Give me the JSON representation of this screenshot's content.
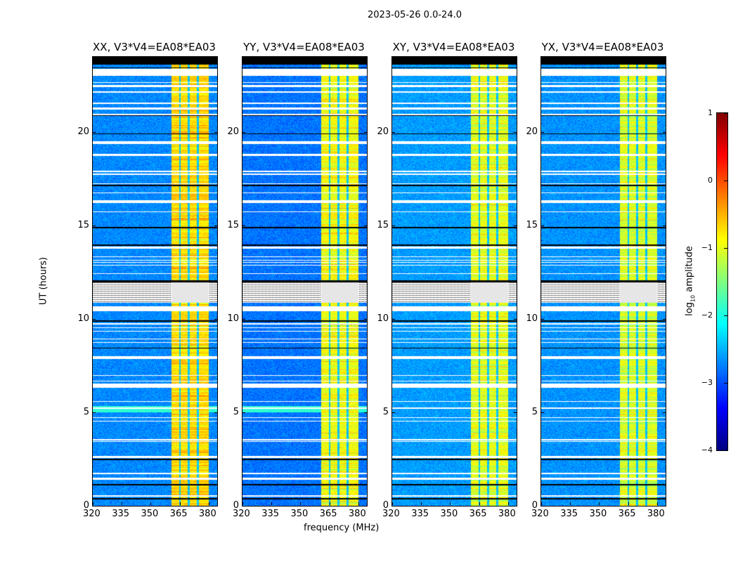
{
  "suptitle": "2023-05-26 0.0-24.0",
  "ylabel": "UT (hours)",
  "xlabel": "frequency (MHz)",
  "colorbar": {
    "label_prefix": "log",
    "label_sub": "10",
    "label_suffix": " amplitude",
    "ticks": [
      "1",
      "0",
      "−1",
      "−2",
      "−3",
      "−4"
    ],
    "tick_values": [
      1,
      0,
      -1,
      -2,
      -3,
      -4
    ],
    "range": [
      -4,
      1
    ],
    "colormap": "jet"
  },
  "chart_data": [
    {
      "type": "heatmap",
      "title": "XX, V3*V4=EA08*EA03",
      "xlabel": "frequency (MHz)",
      "ylabel": "UT (hours)",
      "xlim": [
        320,
        384.4
      ],
      "ylim": [
        0,
        24
      ],
      "xticks": [
        320,
        335,
        350,
        365,
        380
      ],
      "yticks": [
        0,
        5,
        10,
        15,
        20
      ],
      "band_level": -0.7,
      "background_level": -2.7
    },
    {
      "type": "heatmap",
      "title": "YY, V3*V4=EA08*EA03",
      "xlabel": "frequency (MHz)",
      "ylabel": "",
      "xlim": [
        320,
        384.4
      ],
      "ylim": [
        0,
        24
      ],
      "xticks": [
        320,
        335,
        350,
        365,
        380
      ],
      "yticks": [
        0,
        5,
        10,
        15,
        20
      ],
      "band_level": -0.9,
      "background_level": -2.8
    },
    {
      "type": "heatmap",
      "title": "XY, V3*V4=EA08*EA03",
      "xlabel": "",
      "ylabel": "",
      "xlim": [
        320,
        384.4
      ],
      "ylim": [
        0,
        24
      ],
      "xticks": [
        320,
        335,
        350,
        365,
        380
      ],
      "yticks": [
        0,
        5,
        10,
        15,
        20
      ],
      "band_level": -1.0,
      "background_level": -2.6
    },
    {
      "type": "heatmap",
      "title": "YX, V3*V4=EA08*EA03",
      "xlabel": "",
      "ylabel": "",
      "xlim": [
        320,
        384.4
      ],
      "ylim": [
        0,
        24
      ],
      "xticks": [
        320,
        335,
        350,
        365,
        380
      ],
      "yticks": [
        0,
        5,
        10,
        15,
        20
      ],
      "band_level": -1.05,
      "background_level": -2.65
    }
  ],
  "rfi_band_mhz": [
    360.7,
    380
  ],
  "band_gaps_mhz": [
    365.1,
    369.8,
    374.5
  ],
  "flagged_hours_white": [
    [
      0.5,
      0.55
    ],
    [
      1.4,
      1.5
    ],
    [
      1.7,
      1.75
    ],
    [
      2.55,
      2.65
    ],
    [
      3.4,
      3.45
    ],
    [
      3.5,
      3.55
    ],
    [
      4.5,
      4.55
    ],
    [
      4.7,
      4.75
    ],
    [
      5.2,
      5.25
    ],
    [
      5.55,
      5.6
    ],
    [
      6.3,
      6.55
    ],
    [
      6.65,
      6.7
    ],
    [
      6.95,
      7.0
    ],
    [
      7.85,
      8.0
    ],
    [
      8.7,
      8.75
    ],
    [
      8.9,
      8.95
    ],
    [
      9.3,
      9.35
    ],
    [
      9.5,
      9.55
    ],
    [
      9.7,
      9.75
    ],
    [
      10.4,
      10.65
    ],
    [
      10.85,
      12.0
    ],
    [
      12.4,
      12.45
    ],
    [
      12.85,
      12.9
    ],
    [
      13.0,
      13.05
    ],
    [
      13.1,
      13.15
    ],
    [
      13.3,
      13.35
    ],
    [
      13.75,
      13.85
    ],
    [
      15.7,
      15.75
    ],
    [
      16.2,
      16.35
    ],
    [
      16.7,
      16.75
    ],
    [
      17.2,
      17.25
    ],
    [
      17.7,
      17.75
    ],
    [
      17.85,
      17.9
    ],
    [
      18.7,
      18.8
    ],
    [
      19.35,
      19.5
    ],
    [
      20.9,
      20.95
    ],
    [
      21.2,
      21.3
    ],
    [
      21.5,
      21.55
    ],
    [
      22.1,
      22.15
    ],
    [
      22.4,
      22.5
    ],
    [
      22.6,
      22.65
    ],
    [
      23.0,
      23.35
    ]
  ],
  "flagged_hours_black": [
    [
      0.35,
      0.4
    ],
    [
      1.1,
      1.15
    ],
    [
      2.45,
      2.52
    ],
    [
      8.4,
      8.45
    ],
    [
      9.85,
      9.9
    ],
    [
      11.95,
      12.05
    ],
    [
      13.9,
      13.96
    ],
    [
      14.85,
      14.9
    ],
    [
      17.1,
      17.15
    ],
    [
      19.85,
      19.92
    ],
    [
      20.85,
      20.9
    ],
    [
      23.4,
      23.42
    ],
    [
      23.6,
      24.0
    ]
  ]
}
